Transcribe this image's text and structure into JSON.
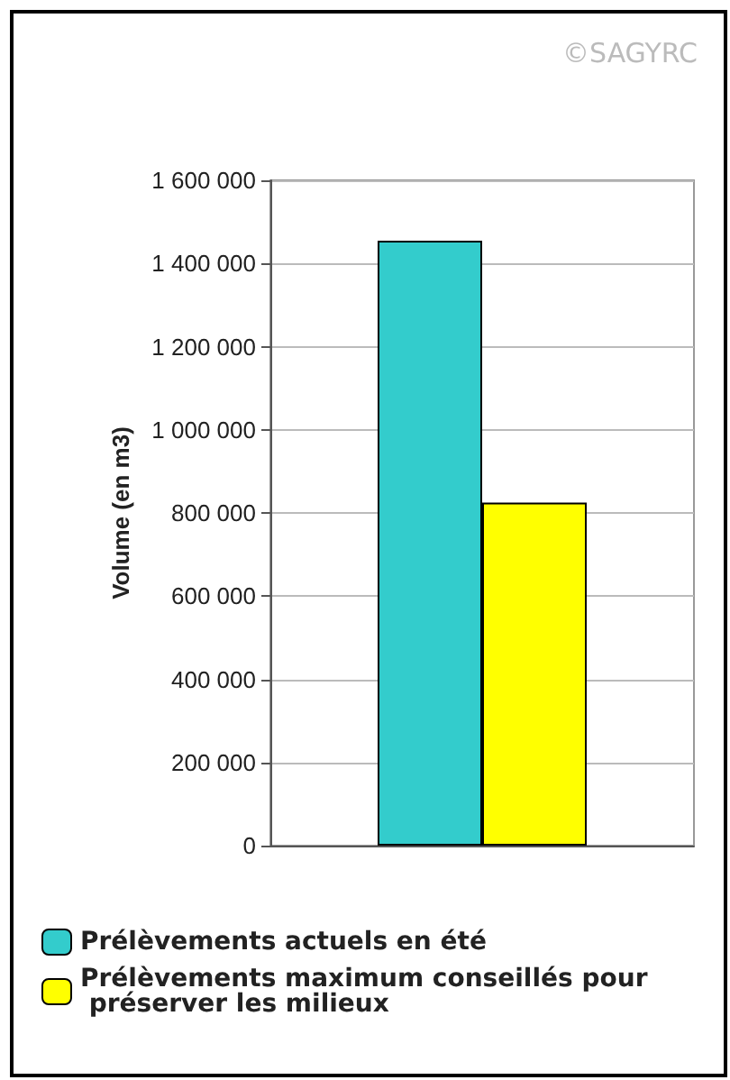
{
  "chart_data": {
    "type": "bar",
    "ylabel": "Volume (en m3)",
    "categories": [
      null
    ],
    "series": [
      {
        "name": "Prélèvements actuels en été",
        "color": "#33cccc",
        "values": [
          1455000
        ]
      },
      {
        "name": "Prélèvements maximum conseillés pour préserver les milieux",
        "color": "#ffff00",
        "values": [
          825000
        ]
      }
    ],
    "ylim": [
      0,
      1600000
    ],
    "yticks": [
      0,
      200000,
      400000,
      600000,
      800000,
      1000000,
      1200000,
      1400000,
      1600000
    ],
    "grid": "y",
    "legend": "bottom",
    "annotations": [
      "©SAGYRC"
    ]
  }
}
